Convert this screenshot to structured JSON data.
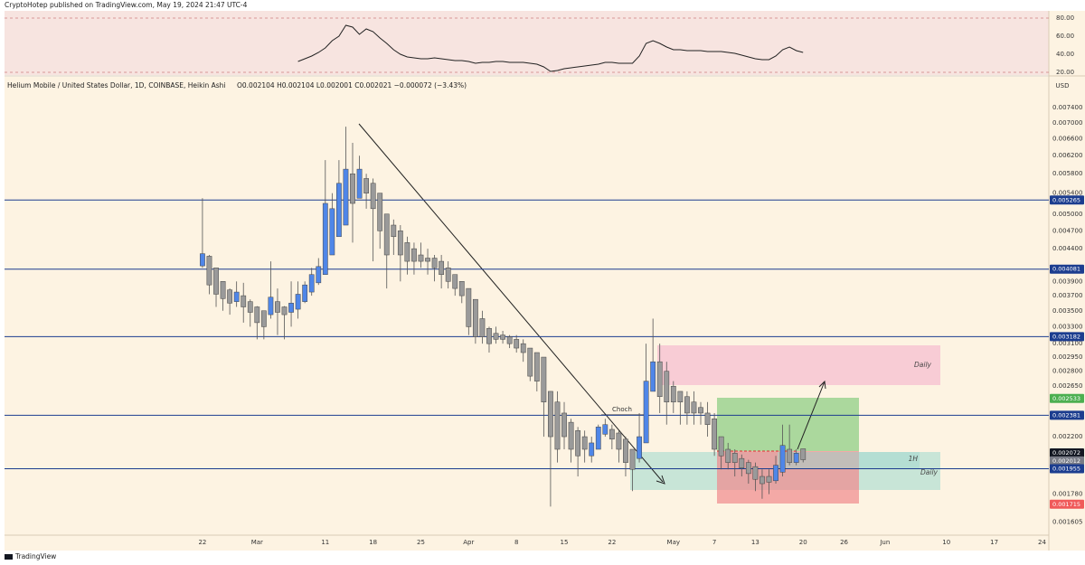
{
  "header": {
    "publisher": "CryptoHotep published on TradingView.com, May 19, 2024 21:47 UTC-4",
    "brand": "TradingView"
  },
  "chart_data": {
    "type": "candlestick",
    "title": "Helium Mobile / United States Dollar, 1D, COINBASE, Heikin Ashi",
    "ohlc_text": "O0.002104 H0.002104 L0.002001 C0.002021 −0.000072 (−3.43%)",
    "currency": "USD",
    "up_color": "#4f86e8",
    "down_color": "#9a9a9a",
    "log": true,
    "x": [
      "2024-02-22",
      "2024-02-23",
      "2024-02-24",
      "2024-02-25",
      "2024-02-26",
      "2024-02-27",
      "2024-02-28",
      "2024-02-29",
      "2024-03-01",
      "2024-03-02",
      "2024-03-03",
      "2024-03-04",
      "2024-03-05",
      "2024-03-06",
      "2024-03-07",
      "2024-03-08",
      "2024-03-09",
      "2024-03-10",
      "2024-03-11",
      "2024-03-12",
      "2024-03-13",
      "2024-03-14",
      "2024-03-15",
      "2024-03-16",
      "2024-03-17",
      "2024-03-18",
      "2024-03-19",
      "2024-03-20",
      "2024-03-21",
      "2024-03-22",
      "2024-03-23",
      "2024-03-24",
      "2024-03-25",
      "2024-03-26",
      "2024-03-27",
      "2024-03-28",
      "2024-03-29",
      "2024-03-30",
      "2024-03-31",
      "2024-04-01",
      "2024-04-02",
      "2024-04-03",
      "2024-04-04",
      "2024-04-05",
      "2024-04-06",
      "2024-04-07",
      "2024-04-08",
      "2024-04-09",
      "2024-04-10",
      "2024-04-11",
      "2024-04-12",
      "2024-04-13",
      "2024-04-14",
      "2024-04-15",
      "2024-04-16",
      "2024-04-17",
      "2024-04-18",
      "2024-04-19",
      "2024-04-20",
      "2024-04-21",
      "2024-04-22",
      "2024-04-23",
      "2024-04-24",
      "2024-04-25",
      "2024-04-26",
      "2024-04-27",
      "2024-04-28",
      "2024-04-29",
      "2024-04-30",
      "2024-05-01",
      "2024-05-02",
      "2024-05-03",
      "2024-05-04",
      "2024-05-05",
      "2024-05-06",
      "2024-05-07",
      "2024-05-08",
      "2024-05-09",
      "2024-05-10",
      "2024-05-11",
      "2024-05-12",
      "2024-05-13",
      "2024-05-14",
      "2024-05-15",
      "2024-05-16",
      "2024-05-17",
      "2024-05-18",
      "2024-05-19",
      "2024-05-20"
    ],
    "open": [
      0.00413,
      0.00428,
      0.0041,
      0.0039,
      0.00378,
      0.00362,
      0.0037,
      0.00362,
      0.00355,
      0.0035,
      0.00345,
      0.00362,
      0.00355,
      0.00348,
      0.00352,
      0.00362,
      0.00375,
      0.00388,
      0.004,
      0.0043,
      0.0046,
      0.0048,
      0.0058,
      0.0053,
      0.0057,
      0.0056,
      0.0054,
      0.005,
      0.0048,
      0.0047,
      0.0045,
      0.0044,
      0.0043,
      0.00425,
      0.00425,
      0.0042,
      0.0041,
      0.004,
      0.0039,
      0.0038,
      0.00365,
      0.0034,
      0.00328,
      0.00322,
      0.0032,
      0.00318,
      0.00315,
      0.0031,
      0.00305,
      0.003,
      0.00295,
      0.0026,
      0.0025,
      0.0024,
      0.00232,
      0.00225,
      0.0022,
      0.00205,
      0.0021,
      0.00222,
      0.00226,
      0.00223,
      0.00218,
      0.0021,
      0.00203,
      0.00215,
      0.0026,
      0.0029,
      0.0028,
      0.00265,
      0.0026,
      0.00255,
      0.0025,
      0.00245,
      0.0024,
      0.00235,
      0.0022,
      0.0021,
      0.00207,
      0.00203,
      0.002,
      0.00197,
      0.0019,
      0.0019,
      0.00187,
      0.00193,
      0.0021,
      0.002,
      0.002104
    ],
    "high": [
      0.0053,
      0.0043,
      0.0041,
      0.0039,
      0.0038,
      0.0039,
      0.00388,
      0.00365,
      0.00356,
      0.0035,
      0.0042,
      0.0038,
      0.00356,
      0.0039,
      0.0039,
      0.0039,
      0.0041,
      0.00425,
      0.0061,
      0.0054,
      0.0061,
      0.0069,
      0.0065,
      0.0062,
      0.0058,
      0.0057,
      0.0054,
      0.005,
      0.0049,
      0.0048,
      0.0046,
      0.0045,
      0.0045,
      0.0044,
      0.0043,
      0.0043,
      0.0042,
      0.004,
      0.0039,
      0.0038,
      0.00365,
      0.0035,
      0.0033,
      0.0033,
      0.00325,
      0.0032,
      0.0032,
      0.00315,
      0.00305,
      0.003,
      0.00295,
      0.0026,
      0.0026,
      0.0025,
      0.00235,
      0.00228,
      0.00225,
      0.0022,
      0.0023,
      0.00235,
      0.0023,
      0.00225,
      0.0022,
      0.0021,
      0.0024,
      0.0031,
      0.0034,
      0.0031,
      0.0029,
      0.0027,
      0.0026,
      0.0026,
      0.0026,
      0.0025,
      0.0025,
      0.0024,
      0.0022,
      0.00215,
      0.0021,
      0.00206,
      0.00202,
      0.002,
      0.00195,
      0.00195,
      0.00205,
      0.0023,
      0.0023,
      0.0021,
      0.002104
    ],
    "low": [
      0.0041,
      0.00372,
      0.00355,
      0.0035,
      0.00345,
      0.00355,
      0.00335,
      0.0033,
      0.00315,
      0.00315,
      0.0034,
      0.0032,
      0.00315,
      0.0033,
      0.0034,
      0.0036,
      0.0037,
      0.00385,
      0.004,
      0.0043,
      0.0046,
      0.0048,
      0.0045,
      0.0053,
      0.0051,
      0.0042,
      0.0044,
      0.0038,
      0.0043,
      0.0039,
      0.004,
      0.004,
      0.0041,
      0.004,
      0.0039,
      0.0038,
      0.0038,
      0.0037,
      0.0036,
      0.0032,
      0.0031,
      0.0031,
      0.003,
      0.0031,
      0.0031,
      0.00305,
      0.003,
      0.0029,
      0.0027,
      0.0026,
      0.0022,
      0.0017,
      0.002,
      0.0021,
      0.002,
      0.0019,
      0.002,
      0.002,
      0.0021,
      0.0022,
      0.0021,
      0.002,
      0.0019,
      0.0018,
      0.002,
      0.00215,
      0.0026,
      0.0024,
      0.0023,
      0.0024,
      0.0023,
      0.0023,
      0.0023,
      0.0023,
      0.0022,
      0.00205,
      0.00195,
      0.00195,
      0.0019,
      0.0019,
      0.00185,
      0.0018,
      0.00175,
      0.00178,
      0.00185,
      0.0019,
      0.00198,
      0.00198,
      0.002001
    ],
    "close": [
      0.00432,
      0.00385,
      0.00372,
      0.00366,
      0.0036,
      0.00375,
      0.00355,
      0.00348,
      0.00335,
      0.0033,
      0.00368,
      0.00348,
      0.00345,
      0.0036,
      0.00372,
      0.00385,
      0.004,
      0.00412,
      0.0052,
      0.0051,
      0.0056,
      0.0059,
      0.0052,
      0.0059,
      0.0054,
      0.0051,
      0.0047,
      0.0043,
      0.0046,
      0.0043,
      0.0042,
      0.0042,
      0.0042,
      0.0042,
      0.0041,
      0.004,
      0.0039,
      0.0038,
      0.0037,
      0.0033,
      0.00318,
      0.00318,
      0.0031,
      0.00315,
      0.00315,
      0.0031,
      0.00305,
      0.003,
      0.00275,
      0.0027,
      0.0025,
      0.0022,
      0.0021,
      0.0022,
      0.0021,
      0.00205,
      0.0021,
      0.00215,
      0.00228,
      0.0023,
      0.00218,
      0.0021,
      0.002,
      0.00195,
      0.0022,
      0.0027,
      0.0029,
      0.00255,
      0.0025,
      0.0025,
      0.0025,
      0.0024,
      0.0024,
      0.0024,
      0.0023,
      0.0021,
      0.00205,
      0.002,
      0.002,
      0.00196,
      0.00192,
      0.00188,
      0.00185,
      0.00186,
      0.00198,
      0.00213,
      0.002,
      0.00207,
      0.002021
    ],
    "xlim": [
      "2024-01-24",
      "2024-06-25"
    ],
    "xticks": [
      {
        "value": "2024-02-22",
        "label": "22"
      },
      {
        "value": "2024-03-01",
        "label": "Mar"
      },
      {
        "value": "2024-03-11",
        "label": "11"
      },
      {
        "value": "2024-03-18",
        "label": "18"
      },
      {
        "value": "2024-03-25",
        "label": "25"
      },
      {
        "value": "2024-04-01",
        "label": "Apr"
      },
      {
        "value": "2024-04-08",
        "label": "8"
      },
      {
        "value": "2024-04-15",
        "label": "15"
      },
      {
        "value": "2024-04-22",
        "label": "22"
      },
      {
        "value": "2024-05-01",
        "label": "May"
      },
      {
        "value": "2024-05-07",
        "label": "7"
      },
      {
        "value": "2024-05-13",
        "label": "13"
      },
      {
        "value": "2024-05-20",
        "label": "20"
      },
      {
        "value": "2024-05-26",
        "label": "26"
      },
      {
        "value": "2024-06-01",
        "label": "Jun"
      },
      {
        "value": "2024-06-10",
        "label": "10"
      },
      {
        "value": "2024-06-17",
        "label": "17"
      },
      {
        "value": "2024-06-24",
        "label": "24"
      }
    ],
    "ylim": [
      0.00153,
      0.00821
    ],
    "yticks": [
      {
        "value": 0.0074,
        "label": "0.007400"
      },
      {
        "value": 0.007,
        "label": "0.007000"
      },
      {
        "value": 0.0066,
        "label": "0.006600"
      },
      {
        "value": 0.0062,
        "label": "0.006200"
      },
      {
        "value": 0.0058,
        "label": "0.005800"
      },
      {
        "value": 0.0054,
        "label": "0.005400"
      },
      {
        "value": 0.005,
        "label": "0.005000"
      },
      {
        "value": 0.0047,
        "label": "0.004700"
      },
      {
        "value": 0.0044,
        "label": "0.004400"
      },
      {
        "value": 0.0039,
        "label": "0.003900"
      },
      {
        "value": 0.0037,
        "label": "0.003700"
      },
      {
        "value": 0.0035,
        "label": "0.003500"
      },
      {
        "value": 0.0033,
        "label": "0.003300"
      },
      {
        "value": 0.0031,
        "label": "0.003100"
      },
      {
        "value": 0.00295,
        "label": "0.002950"
      },
      {
        "value": 0.0028,
        "label": "0.002800"
      },
      {
        "value": 0.00265,
        "label": "0.002650"
      },
      {
        "value": 0.0022,
        "label": "0.002200"
      },
      {
        "value": 0.00178,
        "label": "0.001780"
      },
      {
        "value": 0.001605,
        "label": "0.001605"
      }
    ],
    "levels": [
      {
        "value": 0.005265,
        "label": "0.005265",
        "color": "#1c3d8f",
        "line": true
      },
      {
        "value": 0.004081,
        "label": "0.004081",
        "color": "#1c3d8f",
        "line": true
      },
      {
        "value": 0.003182,
        "label": "0.003182",
        "color": "#1c3d8f",
        "line": true
      },
      {
        "value": 0.002533,
        "label": "0.002533",
        "color": "#4caf50",
        "line": false
      },
      {
        "value": 0.002381,
        "label": "0.002381",
        "color": "#1c3d8f",
        "line": true
      },
      {
        "value": 0.002072,
        "label": "0.002072",
        "color": "#131722",
        "line": false
      },
      {
        "value": 0.002012,
        "label": "0.002012",
        "color": "#787b86",
        "line": false,
        "countdown": "22:12:07"
      },
      {
        "value": 0.001955,
        "label": "0.001955",
        "color": "#1c3d8f",
        "line": true
      },
      {
        "value": 0.001715,
        "label": "0.001715",
        "color": "#f05a5a",
        "line": false
      }
    ],
    "annotations": {
      "daily_upper": "Daily",
      "daily_lower": "Daily",
      "one_hour": "1H",
      "choch": "Choch"
    },
    "rsi": {
      "type": "line",
      "color": "#222222",
      "values": [
        null,
        null,
        null,
        null,
        null,
        null,
        null,
        null,
        null,
        null,
        null,
        null,
        null,
        null,
        32,
        35,
        38,
        42,
        47,
        55,
        60,
        72,
        70,
        62,
        68,
        65,
        58,
        52,
        45,
        40,
        37,
        36,
        35,
        35,
        36,
        35,
        34,
        33,
        33,
        32,
        30,
        31,
        31,
        32,
        32,
        31,
        31,
        31,
        30,
        29,
        26,
        21,
        22,
        24,
        25,
        26,
        27,
        28,
        29,
        31,
        31,
        30,
        30,
        30,
        38,
        52,
        55,
        52,
        48,
        45,
        45,
        44,
        44,
        44,
        43,
        43,
        43,
        42,
        41,
        39,
        37,
        35,
        34,
        34,
        38,
        45,
        48,
        44,
        42
      ],
      "ylim": [
        17,
        88
      ],
      "yticks": [
        {
          "value": 20,
          "label": "20.00"
        },
        {
          "value": 40,
          "label": "40.00"
        },
        {
          "value": 60,
          "label": "60.00"
        },
        {
          "value": 80,
          "label": "80.00"
        }
      ]
    }
  }
}
